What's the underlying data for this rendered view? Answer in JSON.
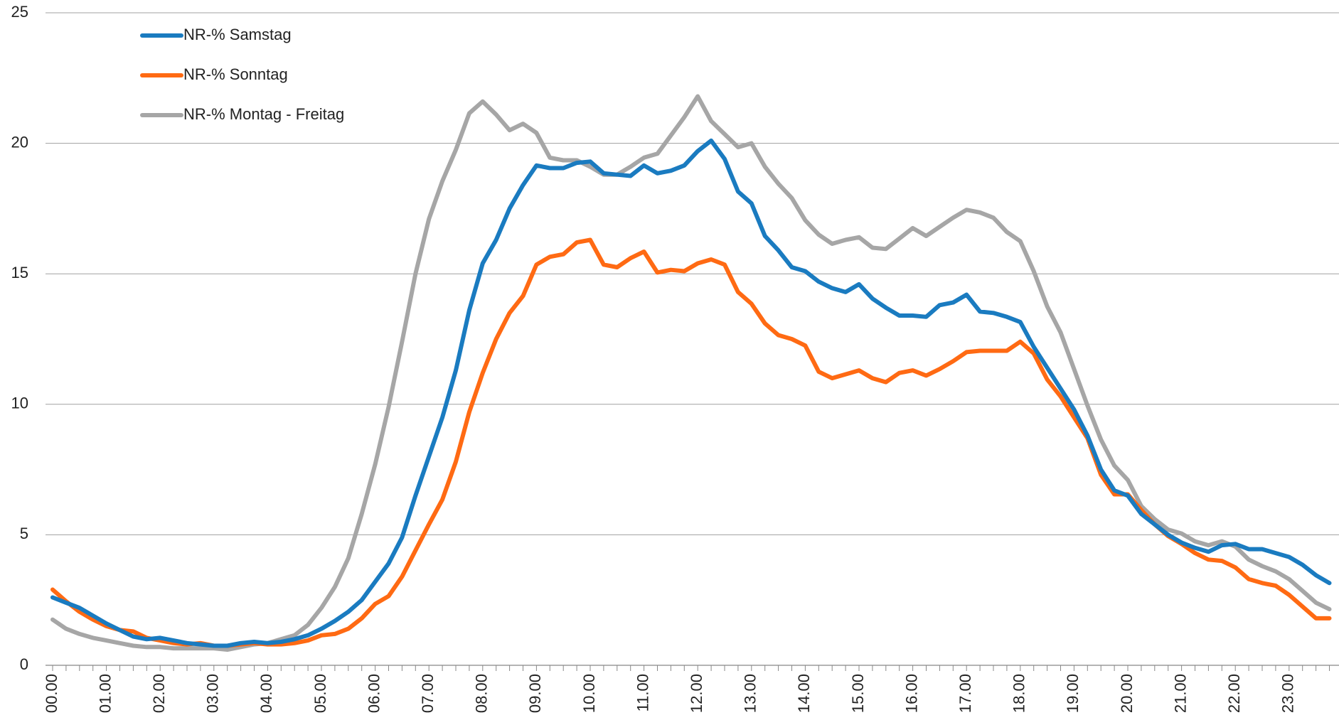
{
  "chart_data": {
    "type": "line",
    "categories": [
      "00.00",
      null,
      null,
      null,
      "01.00",
      null,
      null,
      null,
      "02.00",
      null,
      null,
      null,
      "03.00",
      null,
      null,
      null,
      "04.00",
      null,
      null,
      null,
      "05.00",
      null,
      null,
      null,
      "06.00",
      null,
      null,
      null,
      "07.00",
      null,
      null,
      null,
      "08.00",
      null,
      null,
      null,
      "09.00",
      null,
      null,
      null,
      "10.00",
      null,
      null,
      null,
      "11.00",
      null,
      null,
      null,
      "12.00",
      null,
      null,
      null,
      "13.00",
      null,
      null,
      null,
      "14.00",
      null,
      null,
      null,
      "15.00",
      null,
      null,
      null,
      "16.00",
      null,
      null,
      null,
      "17.00",
      null,
      null,
      null,
      "18.00",
      null,
      null,
      null,
      "19.00",
      null,
      null,
      null,
      "20.00",
      null,
      null,
      null,
      "21.00",
      null,
      null,
      null,
      "22.00",
      null,
      null,
      null,
      "23.00",
      null,
      null,
      null
    ],
    "series": [
      {
        "name": "NR-% Samstag",
        "color": "#1a7bc0",
        "values": [
          2.6,
          2.4,
          2.2,
          1.9,
          1.6,
          1.35,
          1.1,
          1.0,
          1.05,
          0.95,
          0.85,
          0.8,
          0.75,
          0.75,
          0.85,
          0.9,
          0.85,
          0.9,
          1.0,
          1.15,
          1.4,
          1.7,
          2.05,
          2.5,
          3.2,
          3.9,
          4.9,
          6.5,
          8.0,
          9.5,
          11.3,
          13.6,
          15.4,
          16.3,
          17.5,
          18.4,
          19.15,
          19.05,
          19.05,
          19.25,
          19.3,
          18.85,
          18.8,
          18.75,
          19.15,
          18.85,
          18.95,
          19.15,
          19.7,
          20.1,
          19.4,
          18.15,
          17.7,
          16.45,
          15.9,
          15.25,
          15.1,
          14.7,
          14.45,
          14.3,
          14.6,
          14.05,
          13.7,
          13.4,
          13.4,
          13.35,
          13.8,
          13.9,
          14.2,
          13.55,
          13.5,
          13.35,
          13.15,
          12.2,
          11.4,
          10.6,
          9.8,
          8.8,
          7.5,
          6.7,
          6.5,
          5.8,
          5.4,
          5.0,
          4.7,
          4.5,
          4.35,
          4.6,
          4.65,
          4.45,
          4.45,
          4.3,
          4.15,
          3.85,
          3.45,
          3.15
        ]
      },
      {
        "name": "NR-% Sonntag",
        "color": "#ff6a13",
        "values": [
          2.9,
          2.45,
          2.05,
          1.75,
          1.5,
          1.35,
          1.3,
          1.05,
          0.95,
          0.85,
          0.8,
          0.85,
          0.75,
          0.75,
          0.8,
          0.85,
          0.8,
          0.8,
          0.85,
          0.95,
          1.15,
          1.2,
          1.4,
          1.8,
          2.35,
          2.65,
          3.4,
          4.4,
          5.4,
          6.35,
          7.8,
          9.7,
          11.2,
          12.5,
          13.5,
          14.15,
          15.35,
          15.65,
          15.75,
          16.2,
          16.3,
          15.35,
          15.25,
          15.6,
          15.85,
          15.05,
          15.15,
          15.1,
          15.4,
          15.55,
          15.35,
          14.3,
          13.85,
          13.1,
          12.65,
          12.5,
          12.25,
          11.25,
          11.0,
          11.15,
          11.3,
          11.0,
          10.85,
          11.2,
          11.3,
          11.1,
          11.35,
          11.65,
          12.0,
          12.05,
          12.05,
          12.05,
          12.4,
          11.95,
          10.95,
          10.3,
          9.5,
          8.7,
          7.3,
          6.55,
          6.55,
          5.95,
          5.4,
          4.95,
          4.65,
          4.3,
          4.05,
          4.0,
          3.75,
          3.3,
          3.15,
          3.05,
          2.7,
          2.25,
          1.8,
          1.8
        ]
      },
      {
        "name": "NR-% Montag - Freitag",
        "color": "#a6a6a6",
        "values": [
          1.75,
          1.4,
          1.2,
          1.05,
          0.95,
          0.85,
          0.75,
          0.7,
          0.7,
          0.65,
          0.65,
          0.65,
          0.65,
          0.6,
          0.7,
          0.8,
          0.85,
          1.0,
          1.15,
          1.55,
          2.2,
          3.0,
          4.1,
          5.8,
          7.7,
          9.9,
          12.4,
          15.0,
          17.1,
          18.55,
          19.75,
          21.15,
          21.6,
          21.1,
          20.5,
          20.75,
          20.4,
          19.45,
          19.35,
          19.35,
          19.1,
          18.8,
          18.8,
          19.1,
          19.45,
          19.6,
          20.3,
          21.0,
          21.8,
          20.85,
          20.35,
          19.85,
          20.0,
          19.1,
          18.45,
          17.9,
          17.05,
          16.5,
          16.15,
          16.3,
          16.4,
          16.0,
          15.95,
          16.35,
          16.75,
          16.45,
          16.8,
          17.15,
          17.45,
          17.35,
          17.15,
          16.6,
          16.25,
          15.1,
          13.75,
          12.75,
          11.35,
          9.95,
          8.65,
          7.65,
          7.1,
          6.1,
          5.6,
          5.2,
          5.05,
          4.75,
          4.6,
          4.75,
          4.55,
          4.05,
          3.8,
          3.6,
          3.3,
          2.85,
          2.4,
          2.15
        ]
      }
    ],
    "ylim": [
      0,
      25
    ],
    "yticks": [
      0,
      5,
      10,
      15,
      20,
      25
    ],
    "grid": true,
    "legend": "top-left"
  }
}
